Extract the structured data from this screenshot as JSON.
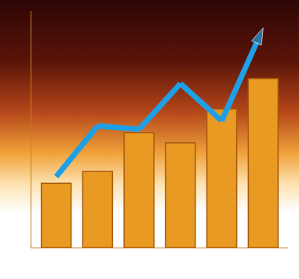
{
  "chart_data": {
    "type": "bar",
    "categories": [
      null,
      null,
      null,
      null,
      null,
      null
    ],
    "series": [
      {
        "type": "bar",
        "color": "#e89a22",
        "values": [
          38,
          45,
          68,
          62,
          82,
          100
        ]
      },
      {
        "type": "line",
        "color": "#1ea0e6",
        "marker": "arrow",
        "line_style": "solid",
        "values": [
          42,
          72,
          70,
          97,
          75,
          130
        ]
      }
    ],
    "ylim": [
      0,
      140
    ],
    "grid": false,
    "tick_labels": false
  }
}
